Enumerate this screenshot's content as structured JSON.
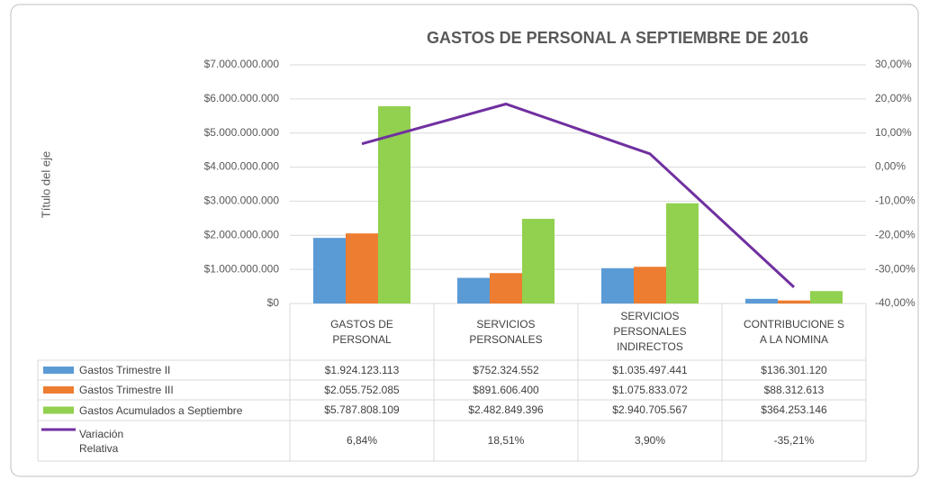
{
  "chart_data": {
    "type": "bar",
    "title": "GASTOS DE PERSONAL A SEPTIEMBRE DE 2016",
    "y_axis_label": "Título del eje",
    "categories": [
      "GASTOS DE PERSONAL",
      "SERVICIOS PERSONALES",
      "SERVICIOS PERSONALES INDIRECTOS",
      "CONTRIBUCIONE S A LA NOMINA"
    ],
    "series": [
      {
        "name": "Gastos Trimestre II",
        "color": "#5b9bd5",
        "values": [
          1924123113,
          752324552,
          1035497441,
          136301120
        ],
        "value_labels": [
          "$1.924.123.113",
          "$752.324.552",
          "$1.035.497.441",
          "$136.301.120"
        ]
      },
      {
        "name": "Gastos Trimestre III",
        "color": "#ed7d31",
        "values": [
          2055752085,
          891606400,
          1075833072,
          88312613
        ],
        "value_labels": [
          "$2.055.752.085",
          "$891.606.400",
          "$1.075.833.072",
          "$88.312.613"
        ]
      },
      {
        "name": "Gastos Acumulados a Septiembre",
        "color": "#92d050",
        "values": [
          5787808109,
          2482849396,
          2940705567,
          364253146
        ],
        "value_labels": [
          "$5.787.808.109",
          "$2.482.849.396",
          "$2.940.705.567",
          "$364.253.146"
        ]
      },
      {
        "name": "Variación Relativa",
        "type": "line",
        "axis": "y2",
        "color": "#7030a0",
        "values": [
          6.84,
          18.51,
          3.9,
          -35.21
        ],
        "value_labels": [
          "6,84%",
          "18,51%",
          "3,90%",
          "-35,21%"
        ]
      }
    ],
    "ylim": [
      0,
      7000000000
    ],
    "yticks": [
      {
        "value": 0,
        "label": "$0"
      },
      {
        "value": 1000000000,
        "label": "$1.000.000.000"
      },
      {
        "value": 2000000000,
        "label": "$2.000.000.000"
      },
      {
        "value": 3000000000,
        "label": "$3.000.000.000"
      },
      {
        "value": 4000000000,
        "label": "$4.000.000.000"
      },
      {
        "value": 5000000000,
        "label": "$5.000.000.000"
      },
      {
        "value": 6000000000,
        "label": "$6.000.000.000"
      },
      {
        "value": 7000000000,
        "label": "$7.000.000.000"
      }
    ],
    "y2lim": [
      -40,
      30
    ],
    "y2ticks": [
      {
        "value": -40,
        "label": "-40,00%"
      },
      {
        "value": -30,
        "label": "-30,00%"
      },
      {
        "value": -20,
        "label": "-20,00%"
      },
      {
        "value": -10,
        "label": "-10,00%"
      },
      {
        "value": 0,
        "label": "0,00%"
      },
      {
        "value": 10,
        "label": "10,00%"
      },
      {
        "value": 20,
        "label": "20,00%"
      },
      {
        "value": 30,
        "label": "30,00%"
      }
    ],
    "grid": true
  }
}
